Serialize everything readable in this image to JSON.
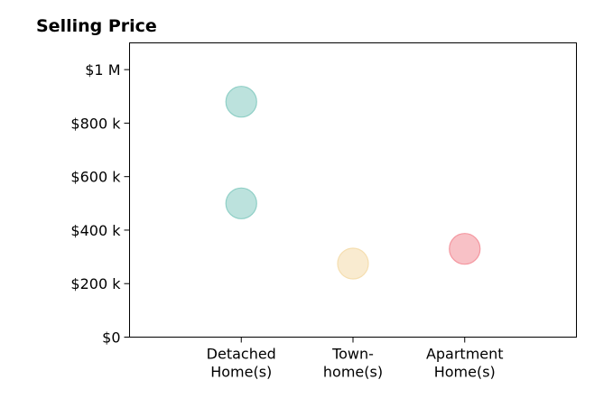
{
  "chart_data": {
    "type": "scatter",
    "title": "Selling Price",
    "xlabel": "",
    "ylabel": "",
    "categories": [
      [
        "Detached",
        "Home(s)"
      ],
      [
        "Town-",
        "home(s)"
      ],
      [
        "Apartment",
        "Home(s)"
      ]
    ],
    "xlim": [
      -1,
      3
    ],
    "ylim": [
      0,
      1100000
    ],
    "y_ticks": [
      0,
      200000,
      400000,
      600000,
      800000,
      1000000
    ],
    "y_tick_labels": [
      "$0",
      "$200 k",
      "$400 k",
      "$600 k",
      "$800 k",
      "$1 M"
    ],
    "grid": false,
    "legend": "none",
    "points": [
      {
        "category": 0,
        "y": 880000,
        "color": "#8fcfc6"
      },
      {
        "category": 0,
        "y": 500000,
        "color": "#8fcfc6"
      },
      {
        "category": 1,
        "y": 275000,
        "color": "#f5deb0"
      },
      {
        "category": 2,
        "y": 330000,
        "color": "#f497a0"
      }
    ]
  }
}
